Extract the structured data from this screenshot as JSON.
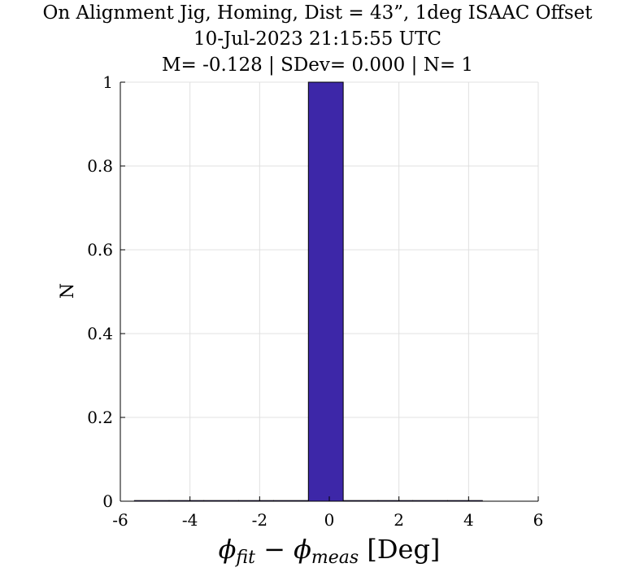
{
  "chart_data": {
    "type": "bar",
    "title": [
      "On Alignment Jig, Homing, Dist = 43”, 1deg ISAAC Offset",
      "10-Jul-2023 21:15:55 UTC",
      "M= -0.128 | SDev= 0.000 | N= 1"
    ],
    "xlabel": {
      "phi": "ϕ",
      "fit": "fit",
      "minus": " − ",
      "meas": "meas",
      "unit": " [Deg]"
    },
    "ylabel": "N",
    "xlim": [
      -6,
      6
    ],
    "ylim": [
      0,
      1
    ],
    "xticks": [
      "-6",
      "-4",
      "-2",
      "0",
      "2",
      "4",
      "6"
    ],
    "xtick_values": [
      -6,
      -4,
      -2,
      0,
      2,
      4,
      6
    ],
    "yticks": [
      "0",
      "0.2",
      "0.4",
      "0.6",
      "0.8",
      "1"
    ],
    "ytick_values": [
      0,
      0.2,
      0.4,
      0.6,
      0.8,
      1
    ],
    "bins": [
      {
        "x0": -5.6,
        "x1": -4.6,
        "value": 0
      },
      {
        "x0": -4.6,
        "x1": -3.6,
        "value": 0
      },
      {
        "x0": -3.6,
        "x1": -2.6,
        "value": 0
      },
      {
        "x0": -2.6,
        "x1": -1.6,
        "value": 0
      },
      {
        "x0": -1.6,
        "x1": -0.6,
        "value": 0
      },
      {
        "x0": -0.6,
        "x1": 0.4,
        "value": 1
      },
      {
        "x0": 0.4,
        "x1": 1.4,
        "value": 0
      },
      {
        "x0": 1.4,
        "x1": 2.4,
        "value": 0
      },
      {
        "x0": 2.4,
        "x1": 3.4,
        "value": 0
      },
      {
        "x0": 3.4,
        "x1": 4.4,
        "value": 0
      }
    ],
    "grid": true,
    "bar_color": "#3d27a8",
    "grid_color": "#e0e0e0"
  }
}
